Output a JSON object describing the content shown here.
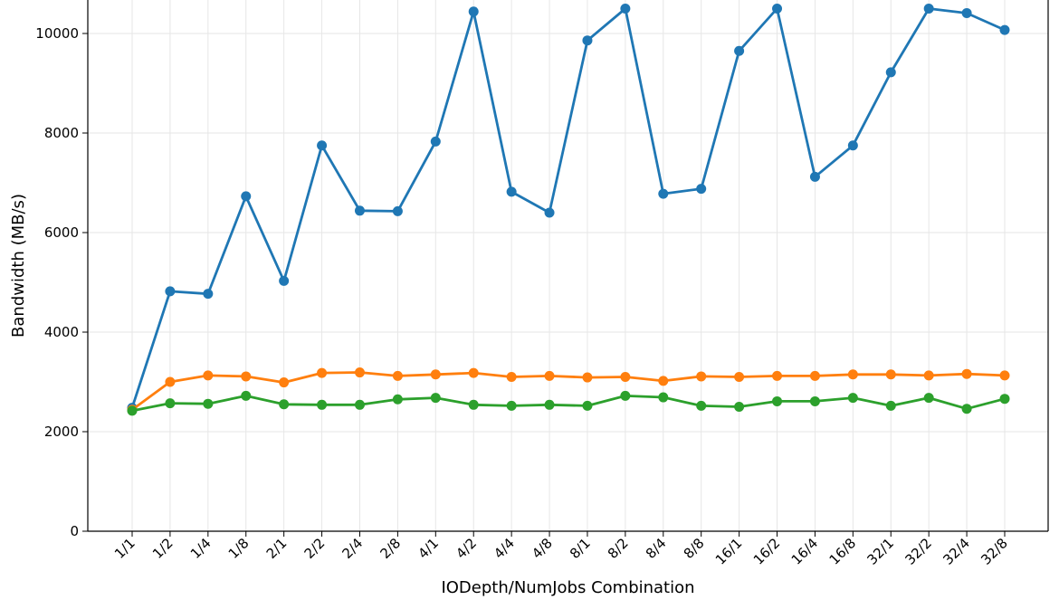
{
  "chart_data": {
    "type": "line",
    "title": "",
    "xlabel": "IODepth/NumJobs Combination",
    "ylabel": "Bandwidth (MB/s)",
    "ylim": [
      0,
      10800
    ],
    "yticks": [
      0,
      2000,
      4000,
      6000,
      8000,
      10000
    ],
    "grid": true,
    "categories": [
      "1/1",
      "1/2",
      "1/4",
      "1/8",
      "2/1",
      "2/2",
      "2/4",
      "2/8",
      "4/1",
      "4/2",
      "4/4",
      "4/8",
      "8/1",
      "8/2",
      "8/4",
      "8/8",
      "16/1",
      "16/2",
      "16/4",
      "16/8",
      "32/1",
      "32/2",
      "32/4",
      "32/8"
    ],
    "series": [
      {
        "color": "#1f77b4",
        "values": [
          2480,
          4820,
          4770,
          6730,
          5030,
          7750,
          6440,
          6430,
          7830,
          10440,
          6820,
          6400,
          9860,
          10500,
          6780,
          6880,
          9650,
          10500,
          7120,
          7750,
          9220,
          10500,
          10410,
          10070
        ]
      },
      {
        "color": "#ff7f0e",
        "values": [
          2440,
          3000,
          3130,
          3110,
          2990,
          3180,
          3190,
          3120,
          3150,
          3180,
          3100,
          3120,
          3090,
          3100,
          3020,
          3110,
          3100,
          3120,
          3120,
          3150,
          3150,
          3130,
          3160,
          3130
        ]
      },
      {
        "color": "#2ca02c",
        "values": [
          2420,
          2570,
          2560,
          2720,
          2550,
          2540,
          2540,
          2650,
          2680,
          2540,
          2520,
          2540,
          2520,
          2720,
          2690,
          2520,
          2500,
          2610,
          2610,
          2680,
          2520,
          2680,
          2460,
          2660
        ]
      }
    ]
  }
}
